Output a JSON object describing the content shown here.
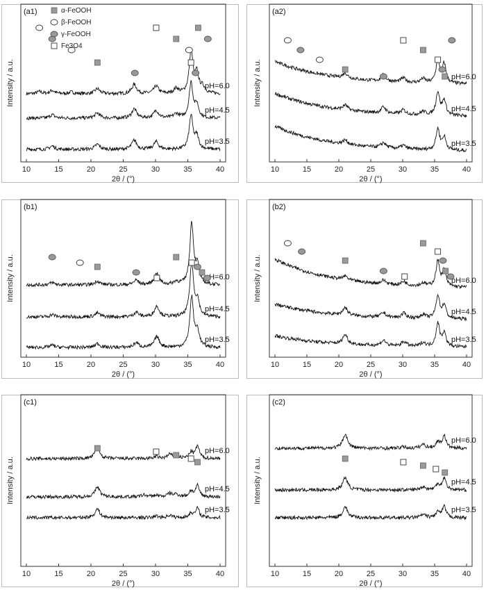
{
  "figure": {
    "panels": [
      {
        "id": "a1",
        "label": "(a1)"
      },
      {
        "id": "a2",
        "label": "(a2)"
      },
      {
        "id": "b1",
        "label": "(b1)"
      },
      {
        "id": "b2",
        "label": "(b2)"
      },
      {
        "id": "c1",
        "label": "(c1)"
      },
      {
        "id": "c2",
        "label": "(c2)"
      }
    ],
    "ylabel": "Intensity / a.u.",
    "xlabel": "2θ / (°)",
    "legend": [
      {
        "symbol": "alpha",
        "text": "α-FeOOH"
      },
      {
        "symbol": "beta",
        "text": "β-FeOOH"
      },
      {
        "symbol": "gamma",
        "text": "γ-FeOOH"
      },
      {
        "symbol": "magnetite",
        "text": "Fe3O4"
      }
    ],
    "colors": {
      "line": "#111111",
      "alpha_fill": "#999999",
      "gamma_fill": "#999999",
      "frame": "#333333"
    }
  },
  "chart_data": [
    {
      "panel": "(a1)",
      "type": "line",
      "xlabel": "2θ / (°)",
      "ylabel": "Intensity / a.u.",
      "xlim": [
        10,
        40
      ],
      "xticks": [
        10,
        15,
        20,
        25,
        30,
        35,
        40
      ],
      "series": [
        {
          "name": "pH=6.0",
          "peaks": [
            [
              12,
              0.05
            ],
            [
              14,
              0.08
            ],
            [
              17,
              0.04
            ],
            [
              21,
              0.12
            ],
            [
              26.7,
              0.22
            ],
            [
              30.1,
              0.18
            ],
            [
              33.2,
              0.12
            ],
            [
              35.5,
              1.0
            ],
            [
              36.4,
              0.45
            ],
            [
              37.3,
              0.15
            ]
          ],
          "base": 0.7
        },
        {
          "name": "pH=4.5",
          "peaks": [
            [
              14,
              0.08
            ],
            [
              21,
              0.12
            ],
            [
              26.7,
              0.22
            ],
            [
              30.1,
              0.18
            ],
            [
              33.2,
              0.1
            ],
            [
              35.5,
              0.85
            ],
            [
              36.4,
              0.3
            ]
          ],
          "base": 0.4
        },
        {
          "name": "pH=3.5",
          "peaks": [
            [
              14,
              0.08
            ],
            [
              21,
              0.12
            ],
            [
              26.7,
              0.22
            ],
            [
              30.1,
              0.18
            ],
            [
              35.5,
              0.8
            ],
            [
              36.4,
              0.3
            ]
          ],
          "base": 0.4
        }
      ],
      "markers": [
        {
          "type": "beta",
          "x": 12
        },
        {
          "type": "gamma",
          "x": 14
        },
        {
          "type": "beta",
          "x": 17
        },
        {
          "type": "alpha",
          "x": 21
        },
        {
          "type": "gamma",
          "x": 26.8
        },
        {
          "type": "magnetite",
          "x": 30.1
        },
        {
          "type": "alpha",
          "x": 33.2
        },
        {
          "type": "beta",
          "x": 35.2
        },
        {
          "type": "magnetite",
          "x": 35.5
        },
        {
          "type": "gamma",
          "x": 36.2
        },
        {
          "type": "alpha",
          "x": 36.6
        },
        {
          "type": "gamma",
          "x": 38.1
        }
      ],
      "legend": true
    },
    {
      "panel": "(a2)",
      "type": "line",
      "xlabel": "2θ / (°)",
      "ylabel": "Intensity / a.u.",
      "xlim": [
        10,
        40
      ],
      "xticks": [
        10,
        15,
        20,
        25,
        30,
        35,
        40
      ],
      "series": [
        {
          "name": "pH=6.0",
          "peaks": [
            [
              21,
              0.12
            ],
            [
              27,
              0.15
            ],
            [
              30.1,
              0.1
            ],
            [
              33.2,
              0.1
            ],
            [
              35.5,
              0.55
            ],
            [
              36.5,
              0.45
            ]
          ],
          "base": 1.2
        },
        {
          "name": "pH=4.5",
          "peaks": [
            [
              21,
              0.12
            ],
            [
              27,
              0.15
            ],
            [
              30.1,
              0.1
            ],
            [
              33.2,
              0.08
            ],
            [
              35.5,
              0.55
            ],
            [
              36.5,
              0.35
            ]
          ],
          "base": 1.2
        },
        {
          "name": "pH=3.5",
          "peaks": [
            [
              21,
              0.1
            ],
            [
              27,
              0.12
            ],
            [
              30.1,
              0.08
            ],
            [
              35.5,
              0.5
            ],
            [
              36.5,
              0.3
            ]
          ],
          "base": 1.3
        }
      ],
      "markers": [
        {
          "type": "beta",
          "x": 12
        },
        {
          "type": "gamma",
          "x": 14
        },
        {
          "type": "beta",
          "x": 17
        },
        {
          "type": "alpha",
          "x": 21
        },
        {
          "type": "gamma",
          "x": 27
        },
        {
          "type": "magnetite",
          "x": 30.1
        },
        {
          "type": "alpha",
          "x": 33.2
        },
        {
          "type": "magnetite",
          "x": 35.5
        },
        {
          "type": "gamma",
          "x": 36.2
        },
        {
          "type": "alpha",
          "x": 36.6
        },
        {
          "type": "gamma",
          "x": 37.7
        }
      ]
    },
    {
      "panel": "(b1)",
      "type": "line",
      "xlabel": "2θ / (°)",
      "ylabel": "Intensity / a.u.",
      "xlim": [
        10,
        40
      ],
      "xticks": [
        10,
        15,
        20,
        25,
        30,
        35,
        40
      ],
      "series": [
        {
          "name": "pH=6.0",
          "peaks": [
            [
              14,
              0.06
            ],
            [
              21,
              0.1
            ],
            [
              27,
              0.12
            ],
            [
              30.2,
              0.3
            ],
            [
              33.2,
              0.08
            ],
            [
              35.6,
              1.6
            ],
            [
              36.5,
              0.45
            ]
          ],
          "base": 0.3
        },
        {
          "name": "pH=4.5",
          "peaks": [
            [
              14,
              0.06
            ],
            [
              21,
              0.1
            ],
            [
              27,
              0.12
            ],
            [
              30.2,
              0.28
            ],
            [
              35.6,
              1.4
            ],
            [
              36.5,
              0.4
            ]
          ],
          "base": 0.3
        },
        {
          "name": "pH=3.5",
          "peaks": [
            [
              14,
              0.06
            ],
            [
              21,
              0.1
            ],
            [
              27,
              0.12
            ],
            [
              30.2,
              0.28
            ],
            [
              35.6,
              1.3
            ],
            [
              36.5,
              0.4
            ]
          ],
          "base": 0.3
        }
      ],
      "markers": [
        {
          "type": "gamma",
          "x": 14
        },
        {
          "type": "beta",
          "x": 18.3
        },
        {
          "type": "alpha",
          "x": 21
        },
        {
          "type": "gamma",
          "x": 27
        },
        {
          "type": "magnetite",
          "x": 30.2
        },
        {
          "type": "alpha",
          "x": 33.2
        },
        {
          "type": "magnetite",
          "x": 35.6
        },
        {
          "type": "gamma",
          "x": 36.5
        },
        {
          "type": "alpha",
          "x": 37.2
        },
        {
          "type": "gamma",
          "x": 38
        }
      ]
    },
    {
      "panel": "(b2)",
      "type": "line",
      "xlabel": "2θ / (°)",
      "ylabel": "Intensity / a.u.",
      "xlim": [
        10,
        40
      ],
      "xticks": [
        10,
        15,
        20,
        25,
        30,
        35,
        40
      ],
      "series": [
        {
          "name": "pH=6.0",
          "peaks": [
            [
              21,
              0.1
            ],
            [
              27,
              0.1
            ],
            [
              30.2,
              0.1
            ],
            [
              33.2,
              0.08
            ],
            [
              35.5,
              0.65
            ],
            [
              36.5,
              0.4
            ]
          ],
          "base": 1.5
        },
        {
          "name": "pH=4.5",
          "peaks": [
            [
              21,
              0.2
            ],
            [
              27,
              0.12
            ],
            [
              30.2,
              0.12
            ],
            [
              33.2,
              0.1
            ],
            [
              35.5,
              0.6
            ],
            [
              36.5,
              0.35
            ]
          ],
          "base": 0.8
        },
        {
          "name": "pH=3.5",
          "peaks": [
            [
              21,
              0.25
            ],
            [
              27,
              0.14
            ],
            [
              30.2,
              0.12
            ],
            [
              33.2,
              0.1
            ],
            [
              35.5,
              0.6
            ],
            [
              36.5,
              0.35
            ]
          ],
          "base": 0.6
        }
      ],
      "markers": [
        {
          "type": "beta",
          "x": 12
        },
        {
          "type": "gamma",
          "x": 14.2
        },
        {
          "type": "alpha",
          "x": 21
        },
        {
          "type": "gamma",
          "x": 27
        },
        {
          "type": "magnetite",
          "x": 30.3
        },
        {
          "type": "alpha",
          "x": 33.2
        },
        {
          "type": "magnetite",
          "x": 35.5
        },
        {
          "type": "gamma",
          "x": 36.3
        },
        {
          "type": "alpha",
          "x": 36.7
        },
        {
          "type": "gamma",
          "x": 37.5
        }
      ]
    },
    {
      "panel": "(c1)",
      "type": "line",
      "xlabel": "2θ / (°)",
      "ylabel": "Intensity / a.u.",
      "xlim": [
        10,
        40
      ],
      "xticks": [
        10,
        15,
        20,
        25,
        30,
        35,
        40
      ],
      "series": [
        {
          "name": "pH=6.0",
          "peaks": [
            [
              21,
              0.35
            ],
            [
              30.1,
              0.06
            ],
            [
              32.2,
              0.12
            ],
            [
              33.2,
              0.1
            ],
            [
              35.5,
              0.2
            ],
            [
              36.5,
              0.4
            ]
          ],
          "base": 0.1
        },
        {
          "name": "pH=4.5",
          "peaks": [
            [
              21,
              0.32
            ],
            [
              28.2,
              0.06
            ],
            [
              30.1,
              0.05
            ],
            [
              32.2,
              0.1
            ],
            [
              33.2,
              0.08
            ],
            [
              35.5,
              0.18
            ],
            [
              36.5,
              0.35
            ]
          ],
          "base": 0.1
        },
        {
          "name": "pH=3.5",
          "peaks": [
            [
              21,
              0.28
            ],
            [
              30.1,
              0.05
            ],
            [
              32.2,
              0.08
            ],
            [
              35.5,
              0.15
            ],
            [
              36.5,
              0.3
            ]
          ],
          "base": 0.1
        }
      ],
      "markers": [
        {
          "type": "alpha",
          "x": 21
        },
        {
          "type": "magnetite",
          "x": 30.1
        },
        {
          "type": "alpha",
          "x": 33.2
        },
        {
          "type": "magnetite",
          "x": 35.5
        },
        {
          "type": "alpha",
          "x": 36.5
        }
      ]
    },
    {
      "panel": "(c2)",
      "type": "line",
      "xlabel": "2θ / (°)",
      "ylabel": "Intensity / a.u.",
      "xlim": [
        10,
        40
      ],
      "xticks": [
        10,
        15,
        20,
        25,
        30,
        35,
        40
      ],
      "series": [
        {
          "name": "pH=6.0",
          "peaks": [
            [
              21,
              0.45
            ],
            [
              30.1,
              0.04
            ],
            [
              33.2,
              0.12
            ],
            [
              35.5,
              0.2
            ],
            [
              36.5,
              0.4
            ]
          ],
          "base": 0.1
        },
        {
          "name": "pH=4.5",
          "peaks": [
            [
              21,
              0.4
            ],
            [
              33.2,
              0.1
            ],
            [
              35.5,
              0.18
            ],
            [
              36.5,
              0.38
            ]
          ],
          "base": 0.1
        },
        {
          "name": "pH=3.5",
          "peaks": [
            [
              21,
              0.35
            ],
            [
              33.2,
              0.1
            ],
            [
              35.5,
              0.18
            ],
            [
              36.5,
              0.35
            ]
          ],
          "base": 0.1
        }
      ],
      "markers": [
        {
          "type": "alpha",
          "x": 21
        },
        {
          "type": "magnetite",
          "x": 30.1
        },
        {
          "type": "alpha",
          "x": 33.2
        },
        {
          "type": "magnetite",
          "x": 35.2
        },
        {
          "type": "alpha",
          "x": 36.6
        }
      ]
    }
  ]
}
